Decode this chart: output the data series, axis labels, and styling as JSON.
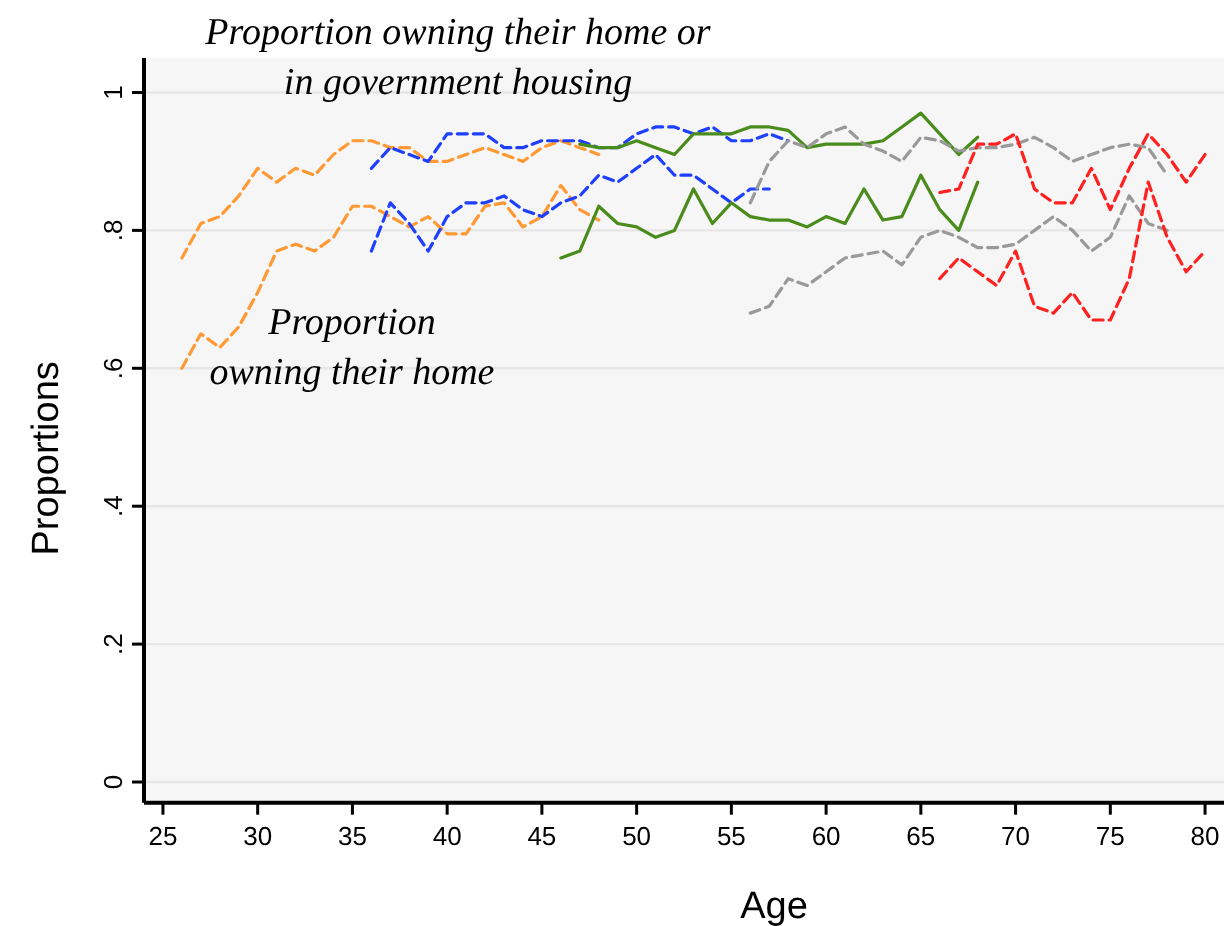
{
  "chart_data": {
    "type": "line",
    "xlabel": "Age",
    "ylabel": "Proportions",
    "xlim": [
      24,
      81
    ],
    "xticks": [
      25,
      30,
      35,
      40,
      45,
      50,
      55,
      60,
      65,
      70,
      75,
      80
    ],
    "ylim": [
      -0.03,
      1.05
    ],
    "yticks": [
      {
        "value": 0,
        "label": "0"
      },
      {
        "value": 0.2,
        "label": ".2"
      },
      {
        "value": 0.4,
        "label": ".4"
      },
      {
        "value": 0.6,
        "label": ".6"
      },
      {
        "value": 0.8,
        "label": ".8"
      },
      {
        "value": 1,
        "label": "1"
      }
    ],
    "grid": "y",
    "annotations": [
      "Proportion owning their home or in government housing",
      "Proportion owning their home"
    ],
    "series": [
      {
        "color": "#ff9933",
        "line_style": "dashed",
        "x": [
          26,
          27,
          28,
          29,
          30,
          31,
          32,
          33,
          34,
          35,
          36,
          37,
          38,
          39,
          40,
          41,
          42,
          43,
          44,
          45,
          46,
          47,
          48
        ],
        "values": [
          0.76,
          0.81,
          0.82,
          0.85,
          0.89,
          0.87,
          0.89,
          0.88,
          0.91,
          0.93,
          0.93,
          0.92,
          0.92,
          0.9,
          0.9,
          0.91,
          0.92,
          0.91,
          0.9,
          0.92,
          0.93,
          0.92,
          0.91
        ]
      },
      {
        "color": "#ff9933",
        "line_style": "dashed",
        "x": [
          26,
          27,
          28,
          29,
          30,
          31,
          32,
          33,
          34,
          35,
          36,
          37,
          38,
          39,
          40,
          41,
          42,
          43,
          44,
          45,
          46,
          47,
          48
        ],
        "values": [
          0.6,
          0.65,
          0.63,
          0.66,
          0.71,
          0.77,
          0.78,
          0.77,
          0.79,
          0.835,
          0.835,
          0.82,
          0.805,
          0.82,
          0.795,
          0.795,
          0.835,
          0.84,
          0.805,
          0.82,
          0.865,
          0.83,
          0.815
        ]
      },
      {
        "color": "#1f3fff",
        "line_style": "dashed",
        "x": [
          36,
          37,
          38,
          39,
          40,
          41,
          42,
          43,
          44,
          45,
          46,
          47,
          48,
          49,
          50,
          51,
          52,
          53,
          54,
          55,
          56,
          57,
          58
        ],
        "values": [
          0.89,
          0.92,
          0.91,
          0.9,
          0.94,
          0.94,
          0.94,
          0.92,
          0.92,
          0.93,
          0.93,
          0.93,
          0.92,
          0.92,
          0.94,
          0.95,
          0.95,
          0.94,
          0.95,
          0.93,
          0.93,
          0.94,
          0.93
        ]
      },
      {
        "color": "#1f3fff",
        "line_style": "dashed",
        "x": [
          36,
          37,
          38,
          39,
          40,
          41,
          42,
          43,
          44,
          45,
          46,
          47,
          48,
          49,
          50,
          51,
          52,
          53,
          54,
          55,
          56,
          57
        ],
        "values": [
          0.77,
          0.84,
          0.81,
          0.77,
          0.82,
          0.84,
          0.84,
          0.85,
          0.83,
          0.82,
          0.84,
          0.85,
          0.88,
          0.87,
          0.89,
          0.91,
          0.88,
          0.88,
          0.86,
          0.84,
          0.86,
          0.86
        ]
      },
      {
        "color": "#4a8c1c",
        "line_style": "solid",
        "x": [
          47,
          48,
          49,
          50,
          51,
          52,
          53,
          54,
          55,
          56,
          57,
          58,
          59,
          60,
          61,
          62,
          63,
          64,
          65,
          66,
          67,
          68
        ],
        "values": [
          0.925,
          0.92,
          0.92,
          0.93,
          0.92,
          0.91,
          0.94,
          0.94,
          0.94,
          0.95,
          0.95,
          0.945,
          0.92,
          0.925,
          0.925,
          0.925,
          0.93,
          0.95,
          0.97,
          0.94,
          0.91,
          0.935
        ]
      },
      {
        "color": "#4a8c1c",
        "line_style": "solid",
        "x": [
          46,
          47,
          48,
          49,
          50,
          51,
          52,
          53,
          54,
          55,
          56,
          57,
          58,
          59,
          60,
          61,
          62,
          63,
          64,
          65,
          66,
          67,
          68
        ],
        "values": [
          0.76,
          0.77,
          0.835,
          0.81,
          0.805,
          0.79,
          0.8,
          0.86,
          0.81,
          0.84,
          0.82,
          0.815,
          0.815,
          0.805,
          0.82,
          0.81,
          0.86,
          0.815,
          0.82,
          0.88,
          0.83,
          0.8,
          0.87
        ]
      },
      {
        "color": "#999999",
        "line_style": "dashed",
        "x": [
          56,
          57,
          58,
          59,
          60,
          61,
          62,
          63,
          64,
          65,
          66,
          67,
          68,
          69,
          70,
          71,
          72,
          73,
          74,
          75,
          76,
          77,
          78
        ],
        "values": [
          0.84,
          0.9,
          0.93,
          0.92,
          0.94,
          0.95,
          0.925,
          0.915,
          0.9,
          0.935,
          0.93,
          0.915,
          0.92,
          0.92,
          0.925,
          0.935,
          0.92,
          0.9,
          0.91,
          0.92,
          0.925,
          0.92,
          0.88
        ]
      },
      {
        "color": "#999999",
        "line_style": "dashed",
        "x": [
          56,
          57,
          58,
          59,
          60,
          61,
          62,
          63,
          64,
          65,
          66,
          67,
          68,
          69,
          70,
          71,
          72,
          73,
          74,
          75,
          76,
          77,
          78
        ],
        "values": [
          0.68,
          0.69,
          0.73,
          0.72,
          0.74,
          0.76,
          0.765,
          0.77,
          0.75,
          0.79,
          0.8,
          0.79,
          0.775,
          0.775,
          0.78,
          0.8,
          0.82,
          0.8,
          0.77,
          0.79,
          0.85,
          0.81,
          0.8
        ]
      },
      {
        "color": "#ff2020",
        "line_style": "dashed",
        "x": [
          66,
          67,
          68,
          69,
          70,
          71,
          72,
          73,
          74,
          75,
          76,
          77,
          78,
          79,
          80
        ],
        "values": [
          0.855,
          0.86,
          0.925,
          0.925,
          0.94,
          0.86,
          0.84,
          0.84,
          0.89,
          0.83,
          0.89,
          0.94,
          0.91,
          0.87,
          0.91
        ]
      },
      {
        "color": "#ff2020",
        "line_style": "dashed",
        "x": [
          66,
          67,
          68,
          69,
          70,
          71,
          72,
          73,
          74,
          75,
          76,
          77,
          78,
          79,
          80
        ],
        "values": [
          0.73,
          0.76,
          0.74,
          0.72,
          0.77,
          0.69,
          0.68,
          0.71,
          0.67,
          0.67,
          0.73,
          0.87,
          0.79,
          0.74,
          0.77
        ]
      }
    ]
  }
}
